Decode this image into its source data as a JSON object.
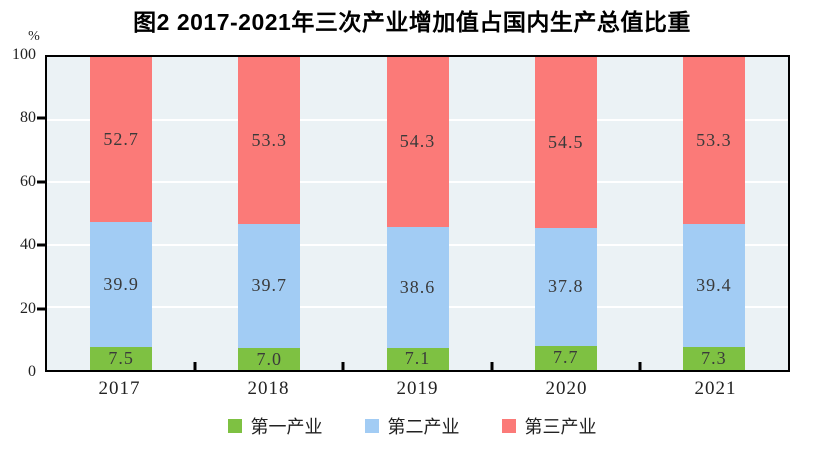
{
  "title": "图2 2017-2021年三次产业增加值占国内生产总值比重",
  "y_axis": {
    "unit": "%",
    "ticks": [
      0,
      20,
      40,
      60,
      80,
      100
    ],
    "min": 0,
    "max": 100
  },
  "chart_data": {
    "type": "bar",
    "stacked": true,
    "title": "图2 2017-2021年三次产业增加值占国内生产总值比重",
    "categories": [
      "2017",
      "2018",
      "2019",
      "2020",
      "2021"
    ],
    "series": [
      {
        "name": "第一产业",
        "color": "#7EC142",
        "values": [
          7.5,
          7.0,
          7.1,
          7.7,
          7.3
        ]
      },
      {
        "name": "第二产业",
        "color": "#A2CCF4",
        "values": [
          39.9,
          39.7,
          38.6,
          37.8,
          39.4
        ]
      },
      {
        "name": "第三产业",
        "color": "#FB7A78",
        "values": [
          52.7,
          53.3,
          54.3,
          54.5,
          53.3
        ]
      }
    ],
    "value_label_decimals": 1,
    "xlabel": "",
    "ylabel": "%",
    "ylim": [
      0,
      100
    ],
    "grid": true,
    "gridline_color": "#FFFFFF",
    "plot_background": "#EBF2F5",
    "legend_position": "bottom"
  }
}
